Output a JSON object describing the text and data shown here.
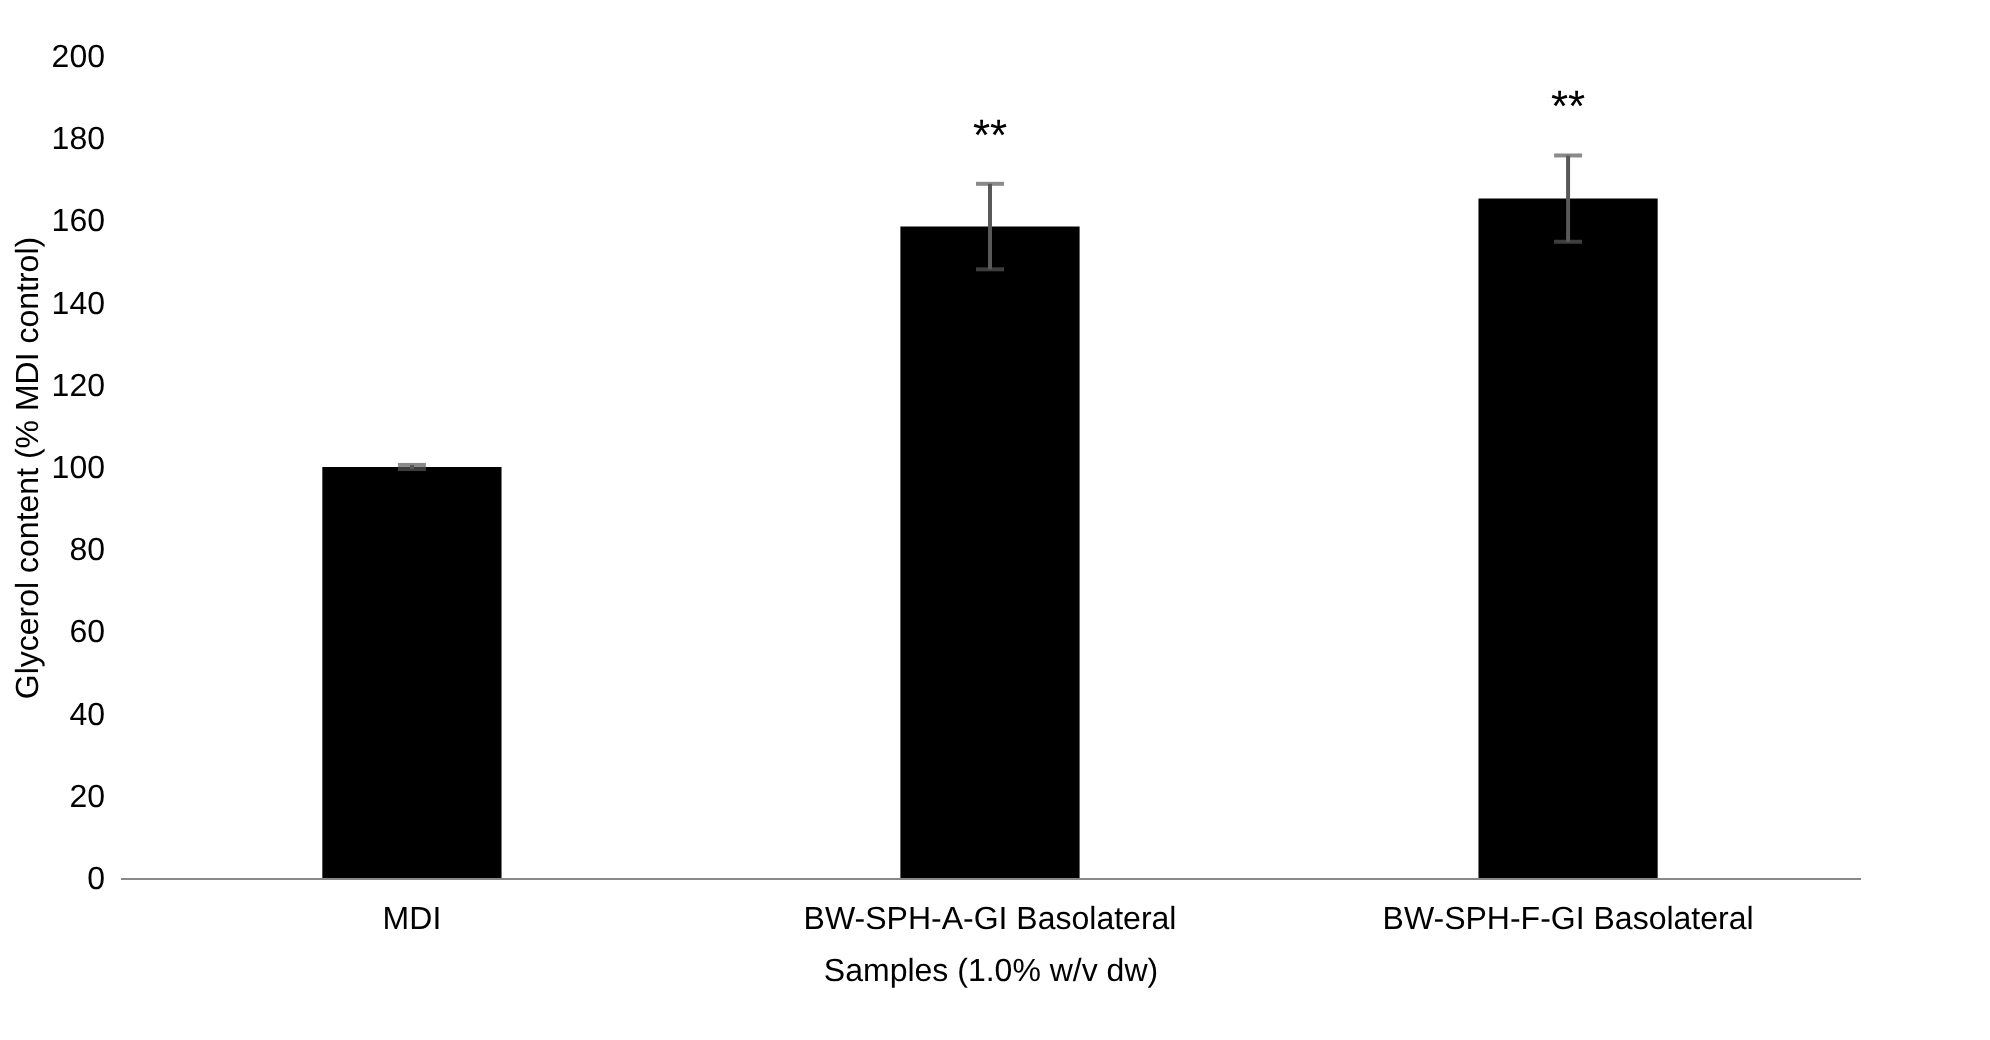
{
  "chart_data": {
    "type": "bar",
    "xlabel": "Samples (1.0% w/v dw)",
    "ylabel": "Glycerol content (% MDI control)",
    "categories": [
      "MDI",
      "BW-SPH-A-GI Basolateral",
      "BW-SPH-F-GI Basolateral"
    ],
    "values": [
      100,
      158.5,
      165.3
    ],
    "errors": [
      0.5,
      10.4,
      10.5
    ],
    "color": "#000000",
    "ylim": [
      0,
      200
    ],
    "yticks": [
      0,
      20,
      40,
      60,
      80,
      100,
      120,
      140,
      160,
      180,
      200
    ],
    "grid": false,
    "annotations": [
      "**",
      "**"
    ]
  }
}
